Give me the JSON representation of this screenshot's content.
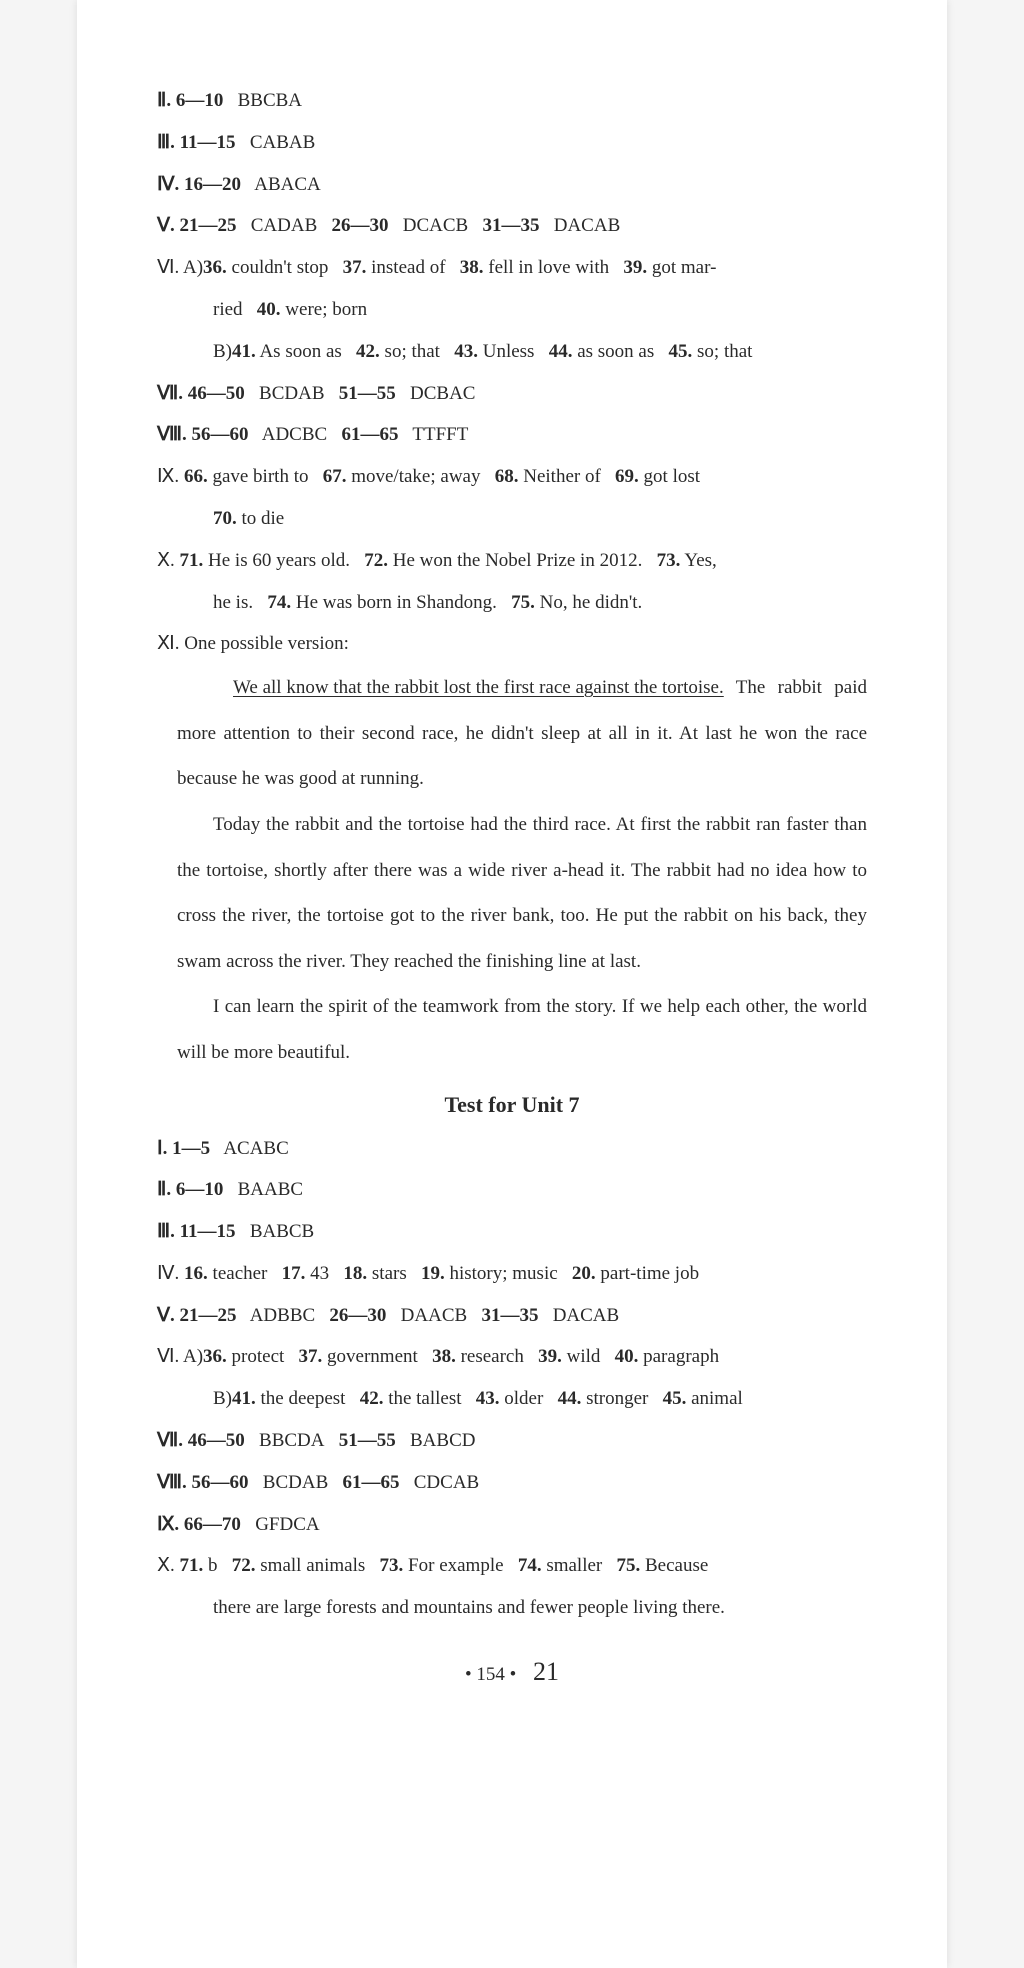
{
  "colors": {
    "page_bg": "#ffffff",
    "body_bg": "#f5f5f5",
    "text": "#2a2a2a"
  },
  "typography": {
    "font_family": "Times New Roman, serif",
    "base_size": 19,
    "title_size": 22,
    "line_height": 2.2
  },
  "top": {
    "l1": {
      "num": "Ⅱ. 6—10",
      "ans": "BBCBA"
    },
    "l2": {
      "num": "Ⅲ. 11—15",
      "ans": "CABAB"
    },
    "l3": {
      "num": "Ⅳ. 16—20",
      "ans": "ABACA"
    },
    "l4": {
      "num": "Ⅴ. 21—25",
      "ans": "CADAB",
      "num2": "26—30",
      "ans2": "DCACB",
      "num3": "31—35",
      "ans3": "DACAB"
    },
    "l5a": "Ⅵ. A)",
    "l5_36": "36.",
    "l5_36a": "couldn't stop",
    "l5_37": "37.",
    "l5_37a": "instead of",
    "l5_38": "38.",
    "l5_38a": "fell in love with",
    "l5_39": "39.",
    "l5_39a": "got mar-",
    "l5b_ried": "ried",
    "l5_40": "40.",
    "l5_40a": "were; born",
    "l6b": "B)",
    "l6_41": "41.",
    "l6_41a": "As soon as",
    "l6_42": "42.",
    "l6_42a": "so; that",
    "l6_43": "43.",
    "l6_43a": "Unless",
    "l6_44": "44.",
    "l6_44a": "as soon as",
    "l6_45": "45.",
    "l6_45a": "so; that",
    "l7": {
      "num": "Ⅶ. 46—50",
      "ans": "BCDAB",
      "num2": "51—55",
      "ans2": "DCBAC"
    },
    "l8": {
      "num": "Ⅷ. 56—60",
      "ans": "ADCBC",
      "num2": "61—65",
      "ans2": "TTFFT"
    },
    "l9": "Ⅸ.",
    "l9_66": "66.",
    "l9_66a": "gave birth to",
    "l9_67": "67.",
    "l9_67a": "move/take; away",
    "l9_68": "68.",
    "l9_68a": "Neither of",
    "l9_69": "69.",
    "l9_69a": "got lost",
    "l9_70": "70.",
    "l9_70a": "to die",
    "l10": "Ⅹ.",
    "l10_71": "71.",
    "l10_71a": "He is 60 years old.",
    "l10_72": "72.",
    "l10_72a": "He won the Nobel Prize in 2012.",
    "l10_73": "73.",
    "l10_73a": "Yes,",
    "l10b": "he is.",
    "l10_74": "74.",
    "l10_74a": "He was born in Shandong.",
    "l10_75": "75.",
    "l10_75a": "No, he didn't.",
    "l11": "Ⅺ. One possible version:"
  },
  "essay": {
    "p1a": "We all know that the rabbit lost the first race against the tortoise.",
    "p1b": "The rabbit paid more attention to their second race, he didn't sleep at all in it. At last he won the race because he was good at running.",
    "p2": "Today the rabbit and the tortoise had the third race. At first the rabbit ran faster than the tortoise, shortly after there was a wide river a-head it. The rabbit had no idea how to cross the river, the tortoise got to the river bank, too. He put the rabbit on his back, they swam across the river. They reached the finishing line at last.",
    "p3": "I can learn the spirit of the teamwork from the story. If we help each other, the world will be more beautiful."
  },
  "unit7_title": "Test for Unit 7",
  "u7": {
    "l1": {
      "num": "Ⅰ. 1—5",
      "ans": "ACABC"
    },
    "l2": {
      "num": "Ⅱ. 6—10",
      "ans": "BAABC"
    },
    "l3": {
      "num": "Ⅲ. 11—15",
      "ans": "BABCB"
    },
    "l4": "Ⅳ.",
    "l4_16": "16.",
    "l4_16a": "teacher",
    "l4_17": "17.",
    "l4_17a": "43",
    "l4_18": "18.",
    "l4_18a": "stars",
    "l4_19": "19.",
    "l4_19a": "history; music",
    "l4_20": "20.",
    "l4_20a": "part-time job",
    "l5": {
      "num": "Ⅴ. 21—25",
      "ans": "ADBBC",
      "num2": "26—30",
      "ans2": "DAACB",
      "num3": "31—35",
      "ans3": "DACAB"
    },
    "l6a": "Ⅵ. A)",
    "l6_36": "36.",
    "l6_36a": "protect",
    "l6_37": "37.",
    "l6_37a": "government",
    "l6_38": "38.",
    "l6_38a": "research",
    "l6_39": "39.",
    "l6_39a": "wild",
    "l6_40": "40.",
    "l6_40a": "paragraph",
    "l6b": "B)",
    "l6_41": "41.",
    "l6_41a": "the deepest",
    "l6_42": "42.",
    "l6_42a": "the tallest",
    "l6_43": "43.",
    "l6_43a": "older",
    "l6_44": "44.",
    "l6_44a": "stronger",
    "l6_45": "45.",
    "l6_45a": "animal",
    "l7": {
      "num": "Ⅶ. 46—50",
      "ans": "BBCDA",
      "num2": "51—55",
      "ans2": "BABCD"
    },
    "l8": {
      "num": "Ⅷ. 56—60",
      "ans": "BCDAB",
      "num2": "61—65",
      "ans2": "CDCAB"
    },
    "l9": {
      "num": "Ⅸ. 66—70",
      "ans": "GFDCA"
    },
    "l10": "Ⅹ.",
    "l10_71": "71.",
    "l10_71a": "b",
    "l10_72": "72.",
    "l10_72a": "small animals",
    "l10_73": "73.",
    "l10_73a": "For example",
    "l10_74": "74.",
    "l10_74a": "smaller",
    "l10_75": "75.",
    "l10_75a": "Because",
    "l10b": "there are large forests and mountains and fewer people living there."
  },
  "page_num": "• 154 •",
  "hand": "21"
}
